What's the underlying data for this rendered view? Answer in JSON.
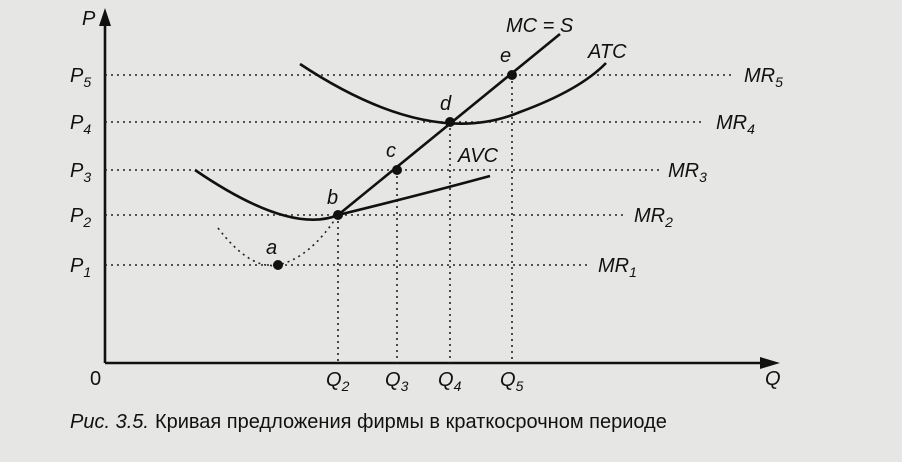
{
  "axes": {
    "y_label": "P",
    "x_label": "Q",
    "origin": "0"
  },
  "price_levels": [
    {
      "symbol": "P",
      "index": "5"
    },
    {
      "symbol": "P",
      "index": "4"
    },
    {
      "symbol": "P",
      "index": "3"
    },
    {
      "symbol": "P",
      "index": "2"
    },
    {
      "symbol": "P",
      "index": "1"
    }
  ],
  "quantity_levels": [
    {
      "symbol": "Q",
      "index": "2"
    },
    {
      "symbol": "Q",
      "index": "3"
    },
    {
      "symbol": "Q",
      "index": "4"
    },
    {
      "symbol": "Q",
      "index": "5"
    }
  ],
  "revenue_lines": [
    {
      "symbol": "MR",
      "index": "5"
    },
    {
      "symbol": "MR",
      "index": "4"
    },
    {
      "symbol": "MR",
      "index": "3"
    },
    {
      "symbol": "MR",
      "index": "2"
    },
    {
      "symbol": "MR",
      "index": "1"
    }
  ],
  "points": [
    "a",
    "b",
    "c",
    "d",
    "e"
  ],
  "curves": {
    "mc": "MC = S",
    "atc": "ATC",
    "avc": "AVC"
  },
  "caption": {
    "label": "Рис. 3.5.",
    "text": "Кривая предложения фирмы в краткосрочном периоде"
  }
}
